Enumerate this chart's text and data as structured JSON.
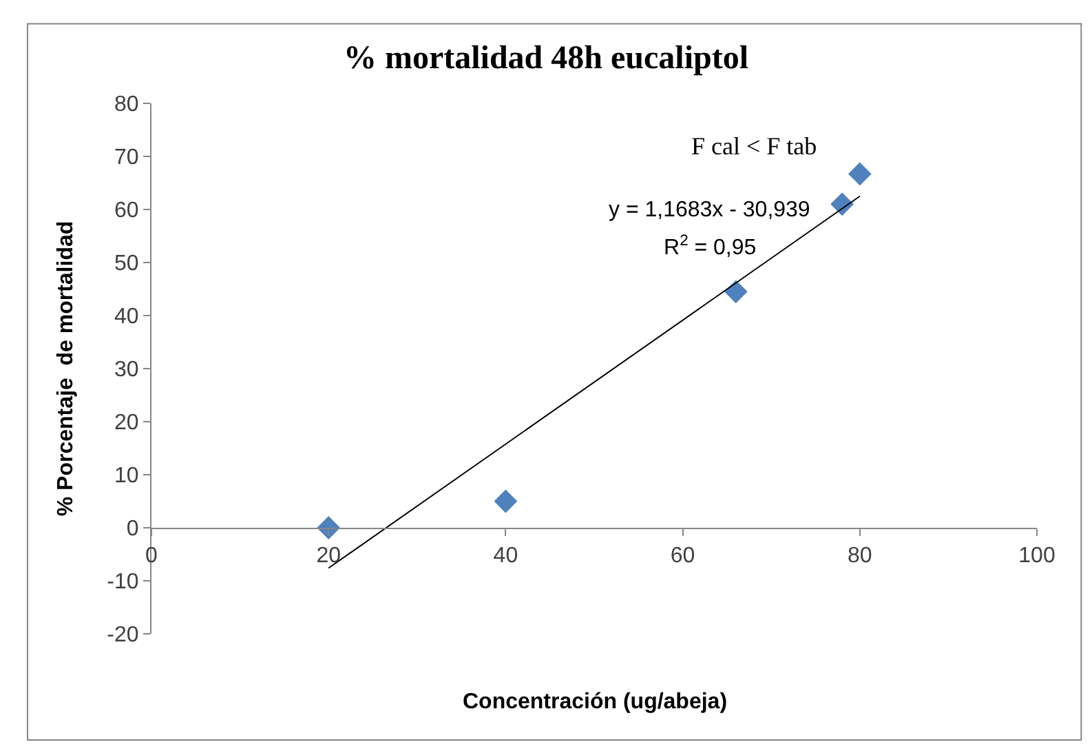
{
  "chart_data": {
    "type": "scatter",
    "title": "% mortalidad 48h eucaliptol",
    "xlabel": "Concentración (ug/abeja)",
    "ylabel": "% Porcentaje  de mortalidad",
    "series": [
      {
        "color": "#4f81bd",
        "marker": "diamond",
        "x": [
          20,
          40,
          66,
          78,
          80
        ],
        "values": [
          0,
          5,
          44.5,
          61,
          66.7
        ]
      },
      {
        "type": "line",
        "color": "#000000",
        "marker": "none",
        "x": [
          20,
          80
        ],
        "values": [
          -7.6,
          62.5
        ]
      }
    ],
    "xlim": [
      0,
      100
    ],
    "xticks": [
      0,
      20,
      40,
      60,
      80,
      100
    ],
    "ylim": [
      -20,
      80
    ],
    "yticks": [
      -20,
      -10,
      0,
      10,
      20,
      30,
      40,
      50,
      60,
      70,
      80
    ],
    "legend": false,
    "annotations": [
      "F cal < F tab",
      "y = 1,1683x - 30,939",
      "R$^{2}$ = 0,95"
    ]
  }
}
